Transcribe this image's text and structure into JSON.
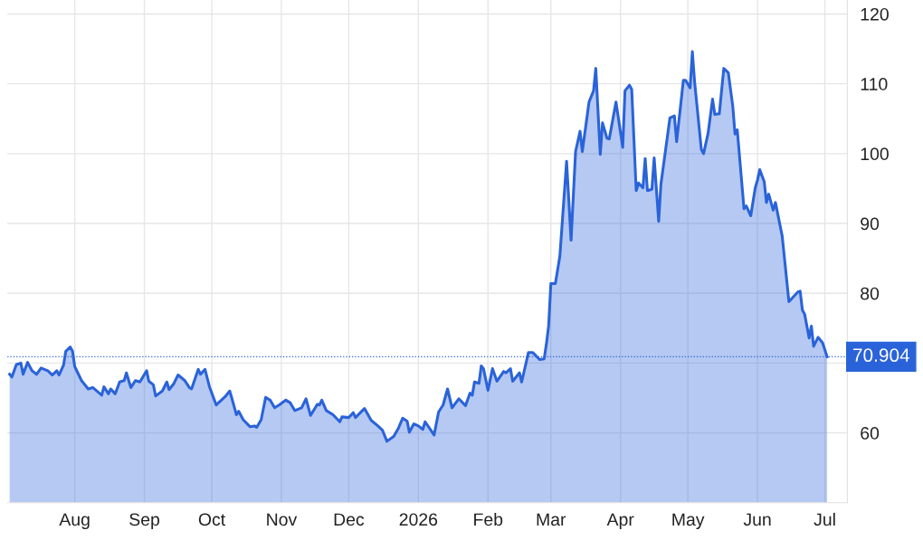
{
  "chart_data": {
    "type": "area",
    "x": [
      "2025-07-03",
      "2025-07-04",
      "2025-07-06",
      "2025-07-08",
      "2025-07-09",
      "2025-07-11",
      "2025-07-13",
      "2025-07-15",
      "2025-07-17",
      "2025-07-20",
      "2025-07-22",
      "2025-07-24",
      "2025-07-25",
      "2025-07-27",
      "2025-07-28",
      "2025-07-30",
      "2025-07-31",
      "2025-08-01",
      "2025-08-04",
      "2025-08-07",
      "2025-08-09",
      "2025-08-13",
      "2025-08-14",
      "2025-08-16",
      "2025-08-17",
      "2025-08-19",
      "2025-08-21",
      "2025-08-23",
      "2025-08-24",
      "2025-08-26",
      "2025-08-28",
      "2025-08-30",
      "2025-09-02",
      "2025-09-03",
      "2025-09-05",
      "2025-09-06",
      "2025-09-09",
      "2025-09-11",
      "2025-09-12",
      "2025-09-14",
      "2025-09-16",
      "2025-09-19",
      "2025-09-21",
      "2025-09-22",
      "2025-09-25",
      "2025-09-26",
      "2025-09-28",
      "2025-09-30",
      "2025-10-03",
      "2025-10-07",
      "2025-10-09",
      "2025-10-10",
      "2025-10-12",
      "2025-10-13",
      "2025-10-15",
      "2025-10-18",
      "2025-10-20",
      "2025-10-21",
      "2025-10-23",
      "2025-10-25",
      "2025-10-27",
      "2025-10-29",
      "2025-10-31",
      "2025-11-03",
      "2025-11-05",
      "2025-11-07",
      "2025-11-10",
      "2025-11-12",
      "2025-11-14",
      "2025-11-17",
      "2025-11-18",
      "2025-11-19",
      "2025-11-21",
      "2025-11-24",
      "2025-11-27",
      "2025-11-28",
      "2025-12-01",
      "2025-12-03",
      "2025-12-04",
      "2025-12-08",
      "2025-12-11",
      "2025-12-14",
      "2025-12-16",
      "2025-12-18",
      "2025-12-21",
      "2025-12-23",
      "2025-12-25",
      "2025-12-27",
      "2025-12-28",
      "2025-12-30",
      "2026-01-01",
      "2026-01-03",
      "2026-01-04",
      "2026-01-08",
      "2026-01-10",
      "2026-01-12",
      "2026-01-14",
      "2026-01-16",
      "2026-01-19",
      "2026-01-22",
      "2026-01-24",
      "2026-01-25",
      "2026-01-26",
      "2026-01-28",
      "2026-01-29",
      "2026-01-30",
      "2026-02-01",
      "2026-02-03",
      "2026-02-05",
      "2026-02-08",
      "2026-02-09",
      "2026-02-11",
      "2026-02-12",
      "2026-02-15",
      "2026-02-16",
      "2026-02-19",
      "2026-02-21",
      "2026-02-24",
      "2026-02-26",
      "2026-02-27",
      "2026-02-28",
      "2026-03-01",
      "2026-03-03",
      "2026-03-05",
      "2026-03-08",
      "2026-03-10",
      "2026-03-12",
      "2026-03-14",
      "2026-03-15",
      "2026-03-18",
      "2026-03-20",
      "2026-03-21",
      "2026-03-23",
      "2026-03-24",
      "2026-03-26",
      "2026-03-27",
      "2026-03-30",
      "2026-04-02",
      "2026-04-03",
      "2026-04-05",
      "2026-04-06",
      "2026-04-08",
      "2026-04-09",
      "2026-04-11",
      "2026-04-12",
      "2026-04-13",
      "2026-04-15",
      "2026-04-16",
      "2026-04-18",
      "2026-04-19",
      "2026-04-23",
      "2026-04-25",
      "2026-04-26",
      "2026-04-29",
      "2026-04-30",
      "2026-05-02",
      "2026-05-03",
      "2026-05-04",
      "2026-05-07",
      "2026-05-08",
      "2026-05-10",
      "2026-05-12",
      "2026-05-13",
      "2026-05-15",
      "2026-05-17",
      "2026-05-19",
      "2026-05-21",
      "2026-05-22",
      "2026-05-23",
      "2026-05-26",
      "2026-05-27",
      "2026-05-29",
      "2026-05-31",
      "2026-06-01",
      "2026-06-02",
      "2026-06-04",
      "2026-06-05",
      "2026-06-06",
      "2026-06-08",
      "2026-06-09",
      "2026-06-12",
      "2026-06-15",
      "2026-06-19",
      "2026-06-20",
      "2026-06-21",
      "2026-06-22",
      "2026-06-24",
      "2026-06-25",
      "2026-06-26",
      "2026-06-28",
      "2026-06-30",
      "2026-07-02"
    ],
    "series": [
      {
        "color": "#2a63d9",
        "values": [
          68.4,
          68.0,
          69.8,
          70.0,
          68.4,
          70.1,
          68.9,
          68.4,
          69.3,
          68.9,
          68.3,
          68.9,
          68.3,
          69.7,
          71.7,
          72.3,
          71.7,
          69.5,
          67.5,
          66.3,
          66.5,
          65.4,
          66.6,
          65.6,
          66.3,
          65.6,
          67.3,
          67.5,
          68.6,
          66.5,
          67.5,
          67.3,
          68.9,
          67.4,
          66.9,
          65.3,
          66.0,
          67.3,
          66.2,
          67.0,
          68.3,
          67.5,
          66.5,
          66.3,
          69.1,
          68.4,
          69.1,
          66.6,
          64.0,
          65.2,
          66.0,
          64.9,
          62.6,
          63.1,
          61.9,
          60.9,
          61.0,
          60.8,
          61.9,
          65.1,
          64.7,
          63.6,
          64.0,
          64.7,
          64.3,
          63.2,
          63.6,
          64.9,
          62.5,
          64.1,
          64.0,
          64.7,
          63.2,
          62.6,
          61.6,
          62.3,
          62.2,
          62.9,
          62.2,
          63.5,
          61.8,
          61.0,
          60.4,
          58.8,
          59.5,
          60.6,
          62.1,
          61.7,
          60.1,
          61.3,
          61.0,
          60.5,
          61.6,
          59.7,
          63.0,
          64.0,
          66.3,
          63.6,
          64.9,
          63.9,
          65.7,
          65.4,
          67.3,
          67.1,
          69.6,
          69.2,
          66.1,
          69.2,
          67.4,
          68.8,
          68.6,
          69.2,
          67.4,
          68.6,
          67.3,
          71.5,
          71.5,
          70.5,
          70.6,
          72.7,
          75.3,
          81.4,
          81.4,
          85.3,
          98.9,
          87.6,
          100.3,
          103.2,
          100.3,
          107.4,
          109.0,
          112.2,
          99.9,
          104.4,
          102.2,
          102.1,
          107.4,
          100.9,
          109.0,
          109.8,
          109.2,
          94.7,
          95.8,
          95.1,
          99.3,
          94.7,
          94.9,
          99.4,
          90.3,
          95.6,
          105.1,
          105.4,
          101.7,
          110.5,
          110.5,
          109.4,
          114.6,
          110.3,
          100.6,
          100.0,
          102.9,
          107.8,
          105.6,
          105.7,
          112.2,
          111.6,
          106.8,
          102.8,
          103.4,
          92.1,
          92.5,
          91.1,
          95.1,
          96.2,
          97.7,
          96.0,
          93.0,
          94.2,
          91.9,
          93.0,
          88.2,
          78.8,
          80.2,
          80.3,
          77.6,
          77.0,
          73.6,
          75.3,
          72.4,
          73.7,
          72.9,
          70.904
        ]
      }
    ],
    "xlim": [
      "2025-07-02",
      "2026-07-11"
    ],
    "xticks": [
      {
        "value": "2025-08-01",
        "label": "Aug"
      },
      {
        "value": "2025-09-01",
        "label": "Sep"
      },
      {
        "value": "2025-10-01",
        "label": "Oct"
      },
      {
        "value": "2025-11-01",
        "label": "Nov"
      },
      {
        "value": "2025-12-01",
        "label": "Dec"
      },
      {
        "value": "2026-01-01",
        "label": "2026"
      },
      {
        "value": "2026-02-01",
        "label": "Feb"
      },
      {
        "value": "2026-03-01",
        "label": "Mar"
      },
      {
        "value": "2026-04-01",
        "label": "Apr"
      },
      {
        "value": "2026-05-01",
        "label": "May"
      },
      {
        "value": "2026-06-01",
        "label": "Jun"
      },
      {
        "value": "2026-07-01",
        "label": "Jul"
      }
    ],
    "ylim": [
      50,
      122
    ],
    "yticks": [
      60,
      {
        "value": 70,
        "label": null
      },
      80,
      90,
      100,
      110,
      120
    ],
    "ref_lines": [
      {
        "axis": "y",
        "value": 70.904,
        "label": "70.904",
        "color": "#2a63d9",
        "line_style": "dotted"
      }
    ],
    "grid": true,
    "marker": "none",
    "line_style": "solid",
    "legend": false
  }
}
